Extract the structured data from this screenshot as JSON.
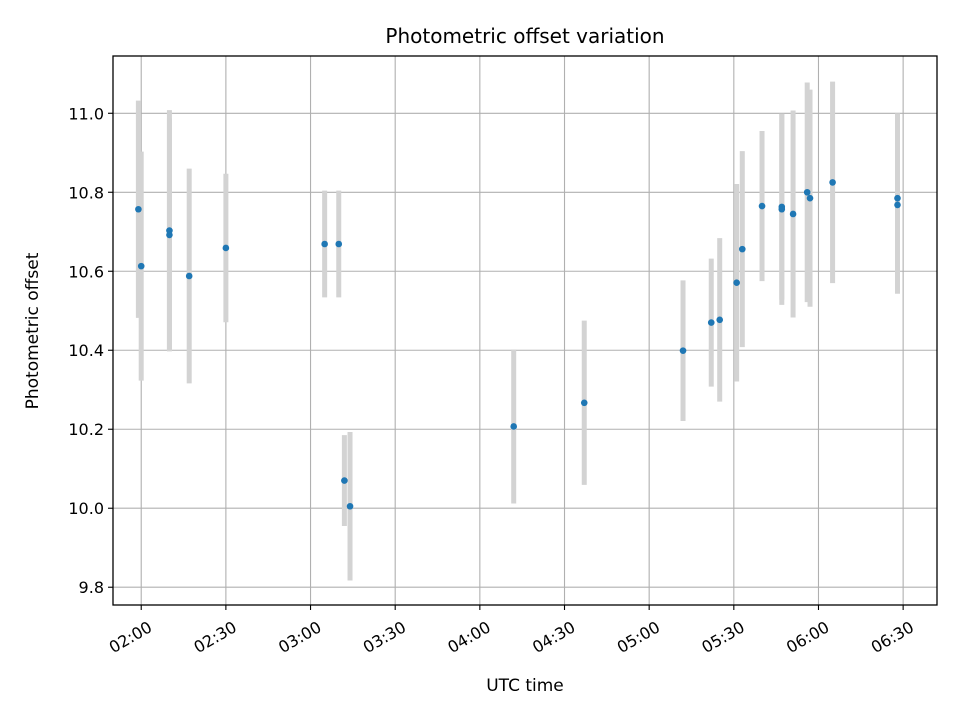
{
  "chart_data": {
    "type": "scatter",
    "title": "Photometric offset variation",
    "xlabel": "UTC time",
    "ylabel": "Photometric offset",
    "xlim": [
      "01:50",
      "06:42"
    ],
    "ylim": [
      9.755,
      11.145
    ],
    "grid": true,
    "colors": {
      "point": "#1f77b4",
      "errorbar": "#d3d3d3",
      "grid": "#b0b0b0"
    },
    "x_ticks": [
      "02:00",
      "02:30",
      "03:00",
      "03:30",
      "04:00",
      "04:30",
      "05:00",
      "05:30",
      "06:00",
      "06:30"
    ],
    "y_ticks": [
      "9.8",
      "10.0",
      "10.2",
      "10.4",
      "10.6",
      "10.8",
      "11.0"
    ],
    "points": [
      {
        "x": "01:59",
        "y": 10.757,
        "yerr": 0.275
      },
      {
        "x": "02:00",
        "y": 10.613,
        "yerr": 0.29
      },
      {
        "x": "02:10",
        "y": 10.703,
        "yerr": 0.305
      },
      {
        "x": "02:10",
        "y": 10.692,
        "yerr": 0.295
      },
      {
        "x": "02:17",
        "y": 10.588,
        "yerr": 0.272
      },
      {
        "x": "02:30",
        "y": 10.659,
        "yerr": 0.188
      },
      {
        "x": "03:05",
        "y": 10.669,
        "yerr": 0.135
      },
      {
        "x": "03:10",
        "y": 10.669,
        "yerr": 0.135
      },
      {
        "x": "03:12",
        "y": 10.07,
        "yerr": 0.115
      },
      {
        "x": "03:14",
        "y": 10.005,
        "yerr": 0.188
      },
      {
        "x": "04:12",
        "y": 10.207,
        "yerr": 0.195
      },
      {
        "x": "04:37",
        "y": 10.267,
        "yerr": 0.208
      },
      {
        "x": "05:12",
        "y": 10.399,
        "yerr": 0.178
      },
      {
        "x": "05:22",
        "y": 10.47,
        "yerr": 0.162
      },
      {
        "x": "05:25",
        "y": 10.477,
        "yerr": 0.207
      },
      {
        "x": "05:31",
        "y": 10.571,
        "yerr": 0.25
      },
      {
        "x": "05:33",
        "y": 10.656,
        "yerr": 0.248
      },
      {
        "x": "05:40",
        "y": 10.765,
        "yerr": 0.19
      },
      {
        "x": "05:47",
        "y": 10.763,
        "yerr": 0.235
      },
      {
        "x": "05:47",
        "y": 10.757,
        "yerr": 0.242
      },
      {
        "x": "05:51",
        "y": 10.745,
        "yerr": 0.262
      },
      {
        "x": "05:56",
        "y": 10.8,
        "yerr": 0.278
      },
      {
        "x": "05:57",
        "y": 10.785,
        "yerr": 0.275
      },
      {
        "x": "06:05",
        "y": 10.825,
        "yerr": 0.255
      },
      {
        "x": "06:28",
        "y": 10.785,
        "yerr": 0.215
      },
      {
        "x": "06:28",
        "y": 10.768,
        "yerr": 0.225
      }
    ]
  }
}
